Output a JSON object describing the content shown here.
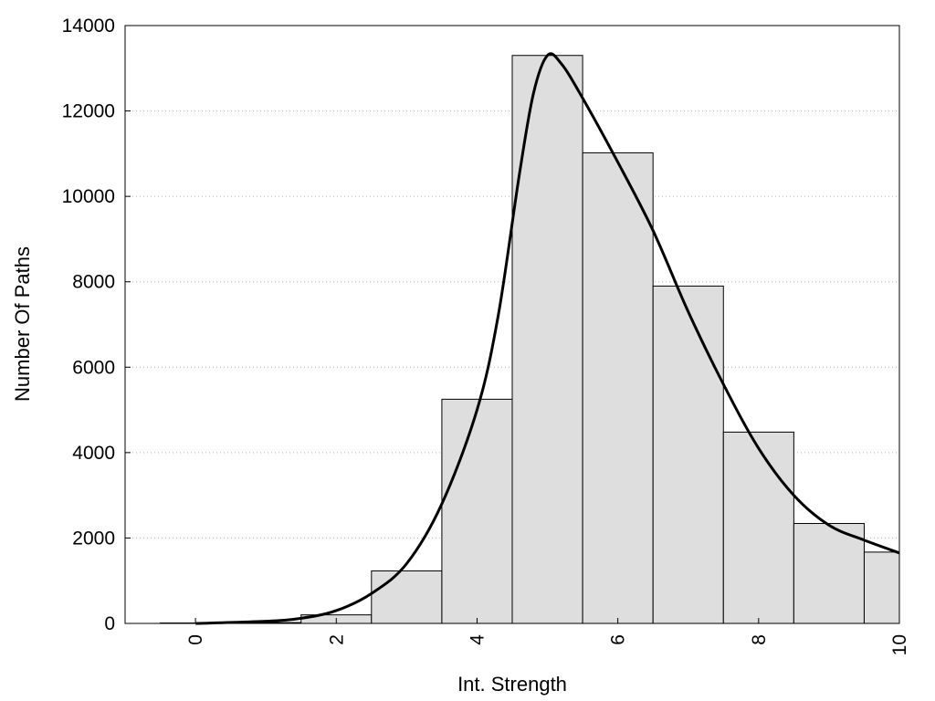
{
  "chart_data": {
    "type": "bar",
    "title": "",
    "xlabel": "Int. Strength",
    "ylabel": "Number Of Paths",
    "xlim": [
      -1,
      10
    ],
    "ylim": [
      0,
      14000
    ],
    "x_ticks": [
      "0",
      "2",
      "4",
      "6",
      "8",
      "10"
    ],
    "y_ticks": [
      "0",
      "2000",
      "4000",
      "6000",
      "8000",
      "10000",
      "12000",
      "14000"
    ],
    "grid": "horizontal dotted",
    "legend": "none",
    "bars": {
      "categories": [
        "0",
        "1",
        "2",
        "3",
        "4",
        "5",
        "6",
        "7",
        "8",
        "9",
        "10"
      ],
      "values": [
        10,
        20,
        200,
        1230,
        5250,
        13300,
        11020,
        7900,
        4480,
        2340,
        1670
      ],
      "color": "#dedede",
      "edge_color": "#000000"
    },
    "density_curve": {
      "color": "#000000",
      "x": [
        0,
        1,
        1.5,
        2,
        2.5,
        3,
        3.5,
        4,
        4.3,
        4.6,
        4.8,
        5.0,
        5.2,
        5.5,
        6.0,
        6.5,
        7.0,
        7.5,
        8.0,
        8.5,
        9.0,
        9.5,
        10.0
      ],
      "y": [
        0,
        50,
        120,
        300,
        700,
        1400,
        2800,
        5000,
        7200,
        10500,
        12400,
        13300,
        13100,
        12300,
        10800,
        9200,
        7300,
        5600,
        4100,
        3000,
        2300,
        1950,
        1650
      ]
    }
  }
}
